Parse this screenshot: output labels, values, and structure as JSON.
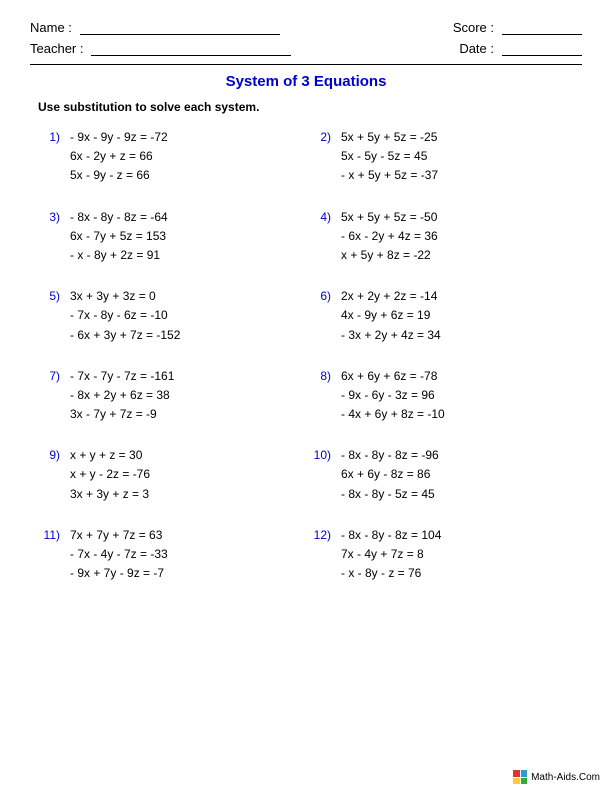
{
  "header": {
    "name_label": "Name :",
    "teacher_label": "Teacher :",
    "score_label": "Score :",
    "date_label": "Date :"
  },
  "title": "System of 3 Equations",
  "instructions": "Use substitution to solve each system.",
  "colors": {
    "accent": "#0000cc",
    "text": "#000000",
    "bg": "#ffffff"
  },
  "problems": [
    {
      "n": "1)",
      "eqs": [
        "- 9x - 9y - 9z = -72",
        "6x - 2y + z = 66",
        "5x - 9y - z = 66"
      ]
    },
    {
      "n": "2)",
      "eqs": [
        "5x + 5y + 5z = -25",
        "5x - 5y - 5z = 45",
        "- x + 5y + 5z = -37"
      ]
    },
    {
      "n": "3)",
      "eqs": [
        "- 8x - 8y - 8z = -64",
        "6x - 7y + 5z = 153",
        "- x - 8y + 2z = 91"
      ]
    },
    {
      "n": "4)",
      "eqs": [
        "5x + 5y + 5z = -50",
        "- 6x - 2y + 4z = 36",
        "x + 5y + 8z = -22"
      ]
    },
    {
      "n": "5)",
      "eqs": [
        "3x + 3y + 3z = 0",
        "- 7x - 8y - 6z = -10",
        "- 6x + 3y + 7z = -152"
      ]
    },
    {
      "n": "6)",
      "eqs": [
        "2x + 2y + 2z = -14",
        "4x - 9y + 6z = 19",
        "- 3x + 2y + 4z = 34"
      ]
    },
    {
      "n": "7)",
      "eqs": [
        "- 7x - 7y - 7z = -161",
        "- 8x + 2y + 6z = 38",
        "3x - 7y + 7z = -9"
      ]
    },
    {
      "n": "8)",
      "eqs": [
        "6x + 6y + 6z = -78",
        "- 9x - 6y - 3z = 96",
        "- 4x + 6y + 8z = -10"
      ]
    },
    {
      "n": "9)",
      "eqs": [
        "x + y + z = 30",
        "x + y - 2z = -76",
        "3x + 3y + z = 3"
      ]
    },
    {
      "n": "10)",
      "eqs": [
        "- 8x - 8y - 8z = -96",
        "6x + 6y - 8z = 86",
        "- 8x - 8y - 5z = 45"
      ]
    },
    {
      "n": "11)",
      "eqs": [
        "7x + 7y + 7z = 63",
        "- 7x - 4y - 7z = -33",
        "- 9x + 7y - 9z = -7"
      ]
    },
    {
      "n": "12)",
      "eqs": [
        "- 8x - 8y - 8z = 104",
        "7x - 4y + 7z = 8",
        "- x - 8y - z = 76"
      ]
    }
  ],
  "footer": {
    "site": "Math-Aids.Com"
  }
}
